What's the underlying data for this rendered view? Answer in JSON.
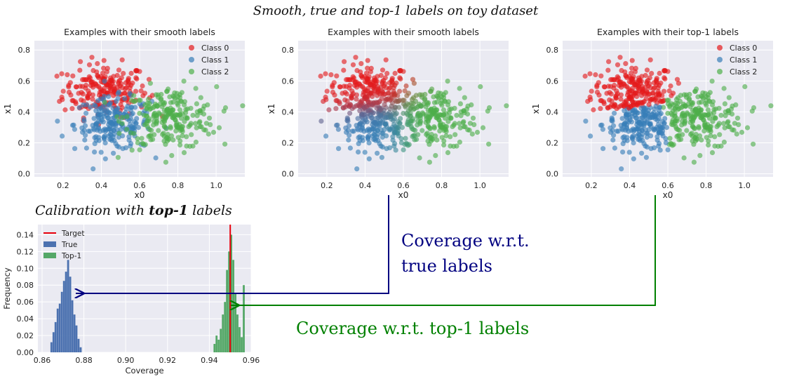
{
  "figure": {
    "title": "Smooth, true and top-1 labels on toy dataset",
    "calibration_title_prefix": "Calibration with ",
    "calibration_title_bold": "top-1",
    "calibration_title_suffix": " labels",
    "callout_true_line1": "Coverage w.r.t.",
    "callout_true_line2": "true labels",
    "callout_top1": "Coverage w.r.t. top-1 labels",
    "colors": {
      "class0": "#e41a1c",
      "class1": "#377eb8",
      "class2": "#4daf4a",
      "plot_bg": "#eaeaf2",
      "arrow_true": "#000080",
      "arrow_top1": "#008000",
      "target": "#e8000b",
      "hist_true": "#4c72b0",
      "hist_top1": "#55a868"
    }
  },
  "chart_data": [
    {
      "type": "scatter",
      "title": "Examples with their smooth labels",
      "xlabel": "x0",
      "ylabel": "x1",
      "xticks": [
        "0.2",
        "0.4",
        "0.6",
        "0.8",
        "1.0"
      ],
      "yticks": [
        "0.0",
        "0.2",
        "0.4",
        "0.6",
        "0.8"
      ],
      "xlim": [
        0.05,
        1.15
      ],
      "ylim": [
        -0.02,
        0.86
      ],
      "legend": [
        "Class 0",
        "Class 1",
        "Class 2"
      ],
      "legend_position": "top-right",
      "grid": true,
      "classes": [
        {
          "name": "Class 0",
          "center": [
            0.42,
            0.54
          ],
          "spread": [
            0.11,
            0.085
          ],
          "n": 220
        },
        {
          "name": "Class 1",
          "center": [
            0.46,
            0.32
          ],
          "spread": [
            0.1,
            0.085
          ],
          "n": 220
        },
        {
          "name": "Class 2",
          "center": [
            0.76,
            0.36
          ],
          "spread": [
            0.12,
            0.1
          ],
          "n": 240
        }
      ],
      "color_mode": "hard_smooth"
    },
    {
      "type": "scatter",
      "title": "Examples with their smooth labels",
      "xlabel": "x0",
      "ylabel": "x1",
      "xticks": [
        "0.2",
        "0.4",
        "0.6",
        "0.8",
        "1.0"
      ],
      "yticks": [
        "0.0",
        "0.2",
        "0.4",
        "0.6",
        "0.8"
      ],
      "xlim": [
        0.05,
        1.15
      ],
      "ylim": [
        -0.02,
        0.86
      ],
      "grid": true,
      "classes": [
        {
          "name": "Class 0",
          "center": [
            0.42,
            0.54
          ],
          "spread": [
            0.11,
            0.085
          ],
          "n": 220
        },
        {
          "name": "Class 1",
          "center": [
            0.46,
            0.32
          ],
          "spread": [
            0.1,
            0.085
          ],
          "n": 220
        },
        {
          "name": "Class 2",
          "center": [
            0.76,
            0.36
          ],
          "spread": [
            0.12,
            0.1
          ],
          "n": 240
        }
      ],
      "color_mode": "blended"
    },
    {
      "type": "scatter",
      "title": "Examples with their top-1 labels",
      "xlabel": "x0",
      "ylabel": "x1",
      "xticks": [
        "0.2",
        "0.4",
        "0.6",
        "0.8",
        "1.0"
      ],
      "yticks": [
        "0.0",
        "0.2",
        "0.4",
        "0.6",
        "0.8"
      ],
      "xlim": [
        0.05,
        1.15
      ],
      "ylim": [
        -0.02,
        0.86
      ],
      "legend": [
        "Class 0",
        "Class 1",
        "Class 2"
      ],
      "legend_position": "top-right",
      "grid": true,
      "classes": [
        {
          "name": "Class 0",
          "center": [
            0.42,
            0.54
          ],
          "spread": [
            0.11,
            0.085
          ],
          "n": 220
        },
        {
          "name": "Class 1",
          "center": [
            0.46,
            0.32
          ],
          "spread": [
            0.1,
            0.085
          ],
          "n": 220
        },
        {
          "name": "Class 2",
          "center": [
            0.76,
            0.36
          ],
          "spread": [
            0.12,
            0.1
          ],
          "n": 240
        }
      ],
      "color_mode": "argmax"
    },
    {
      "type": "bar",
      "subtype": "histogram",
      "xlabel": "Coverage",
      "ylabel": "Frequency",
      "xticks": [
        "0.86",
        "0.88",
        "0.90",
        "0.92",
        "0.94",
        "0.96"
      ],
      "yticks": [
        "0.00",
        "0.02",
        "0.04",
        "0.06",
        "0.08",
        "0.10",
        "0.12",
        "0.14"
      ],
      "xlim": [
        0.858,
        0.96
      ],
      "ylim": [
        0,
        0.152
      ],
      "legend": [
        "Target",
        "True",
        "Top-1"
      ],
      "legend_position": "top-left",
      "grid": true,
      "target": 0.95,
      "series": [
        {
          "name": "True",
          "bins": [
            0.864,
            0.865,
            0.866,
            0.867,
            0.868,
            0.869,
            0.87,
            0.871,
            0.872,
            0.873,
            0.874,
            0.875,
            0.876,
            0.877,
            0.878
          ],
          "values": [
            0.012,
            0.024,
            0.036,
            0.052,
            0.058,
            0.072,
            0.085,
            0.096,
            0.11,
            0.09,
            0.062,
            0.045,
            0.032,
            0.016,
            0.006
          ]
        },
        {
          "name": "Top-1",
          "bins": [
            0.942,
            0.943,
            0.944,
            0.945,
            0.946,
            0.947,
            0.948,
            0.949,
            0.95,
            0.951,
            0.952,
            0.953,
            0.954,
            0.955,
            0.956
          ],
          "values": [
            0.01,
            0.02,
            0.015,
            0.028,
            0.045,
            0.06,
            0.098,
            0.12,
            0.14,
            0.11,
            0.07,
            0.045,
            0.03,
            0.018,
            0.08
          ]
        }
      ]
    }
  ]
}
